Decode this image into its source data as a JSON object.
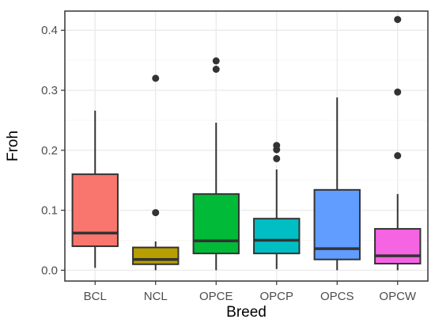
{
  "chart_data": {
    "type": "box",
    "xlabel": "Breed",
    "ylabel": "Froh",
    "ylim": [
      -0.018,
      0.432
    ],
    "yticks": [
      0.0,
      0.1,
      0.2,
      0.3,
      0.4
    ],
    "ytick_labels": [
      "0.0",
      "0.1",
      "0.2",
      "0.3",
      "0.4"
    ],
    "grid": true,
    "legend": "none",
    "categories": [
      "BCL",
      "NCL",
      "OPCE",
      "OPCP",
      "OPCS",
      "OPCW"
    ],
    "boxes": [
      {
        "category": "BCL",
        "color": "#F8766D",
        "whisker_low": 0.004,
        "q1": 0.04,
        "median": 0.062,
        "q3": 0.16,
        "whisker_high": 0.266,
        "outliers": []
      },
      {
        "category": "NCL",
        "color": "#B79F00",
        "whisker_low": 0.0,
        "q1": 0.01,
        "median": 0.018,
        "q3": 0.038,
        "whisker_high": 0.048,
        "outliers": [
          0.096,
          0.32
        ]
      },
      {
        "category": "OPCE",
        "color": "#00BA38",
        "whisker_low": 0.0,
        "q1": 0.028,
        "median": 0.049,
        "q3": 0.127,
        "whisker_high": 0.246,
        "outliers": [
          0.335,
          0.349
        ]
      },
      {
        "category": "OPCP",
        "color": "#00BFC4",
        "whisker_low": 0.002,
        "q1": 0.028,
        "median": 0.05,
        "q3": 0.086,
        "whisker_high": 0.168,
        "outliers": [
          0.186,
          0.201,
          0.208
        ]
      },
      {
        "category": "OPCS",
        "color": "#619CFF",
        "whisker_low": 0.0,
        "q1": 0.018,
        "median": 0.036,
        "q3": 0.134,
        "whisker_high": 0.288,
        "outliers": []
      },
      {
        "category": "OPCW",
        "color": "#F564E3",
        "whisker_low": 0.0,
        "q1": 0.011,
        "median": 0.024,
        "q3": 0.069,
        "whisker_high": 0.127,
        "outliers": [
          0.191,
          0.297,
          0.418
        ]
      }
    ]
  },
  "colors": {
    "panel_border": "#333333",
    "grid_major": "#EBEBEB",
    "grid_minor": "#F5F5F5",
    "box_outline": "#333333",
    "outlier": "#333333"
  }
}
